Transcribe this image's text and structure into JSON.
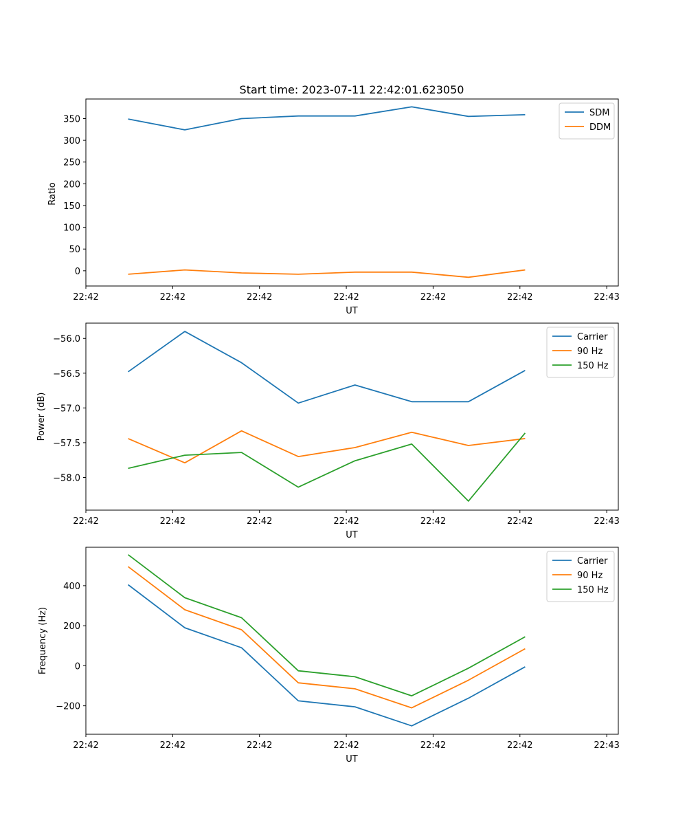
{
  "figure_title": "Start time: 2023-07-11 22:42:01.623050",
  "colors": {
    "c0": "#1f77b4",
    "c1": "#ff7f0e",
    "c2": "#2ca02c"
  },
  "chart_data": [
    {
      "type": "line",
      "xlabel": "UT",
      "ylabel": "Ratio",
      "xlim": [
        0,
        9.2
      ],
      "ylim": [
        -35,
        395
      ],
      "x_ticks": [
        0,
        1.5,
        3,
        4.5,
        6,
        7.5,
        9
      ],
      "x_tick_labels": [
        "22:42",
        "22:42",
        "22:42",
        "22:42",
        "22:42",
        "22:42",
        "22:43"
      ],
      "y_ticks": [
        0,
        50,
        100,
        150,
        200,
        250,
        300,
        350
      ],
      "y_tick_labels": [
        "0",
        "50",
        "100",
        "150",
        "200",
        "250",
        "300",
        "350"
      ],
      "x": [
        0.73,
        1.71,
        2.69,
        3.67,
        4.65,
        5.63,
        6.61,
        7.59
      ],
      "legend": "top-right",
      "series": [
        {
          "name": "SDM",
          "color": "#1f77b4",
          "values": [
            349,
            324,
            350,
            356,
            356,
            377,
            355,
            359
          ]
        },
        {
          "name": "DDM",
          "color": "#ff7f0e",
          "values": [
            -8,
            2,
            -5,
            -8,
            -3,
            -3,
            -15,
            2
          ]
        }
      ]
    },
    {
      "type": "line",
      "xlabel": "UT",
      "ylabel": "Power (dB)",
      "xlim": [
        0,
        9.2
      ],
      "ylim": [
        -58.47,
        -55.78
      ],
      "x_ticks": [
        0,
        1.5,
        3,
        4.5,
        6,
        7.5,
        9
      ],
      "x_tick_labels": [
        "22:42",
        "22:42",
        "22:42",
        "22:42",
        "22:42",
        "22:42",
        "22:43"
      ],
      "y_ticks": [
        -58.0,
        -57.5,
        -57.0,
        -56.5,
        -56.0
      ],
      "y_tick_labels": [
        "−58.0",
        "−57.5",
        "−57.0",
        "−56.5",
        "−56.0"
      ],
      "x": [
        0.73,
        1.71,
        2.69,
        3.67,
        4.65,
        5.63,
        6.61,
        7.59
      ],
      "legend": "top-right",
      "series": [
        {
          "name": "Carrier",
          "color": "#1f77b4",
          "values": [
            -56.48,
            -55.9,
            -56.35,
            -56.93,
            -56.67,
            -56.91,
            -56.91,
            -56.46
          ]
        },
        {
          "name": "90 Hz",
          "color": "#ff7f0e",
          "values": [
            -57.44,
            -57.79,
            -57.33,
            -57.7,
            -57.57,
            -57.35,
            -57.54,
            -57.44
          ]
        },
        {
          "name": "150 Hz",
          "color": "#2ca02c",
          "values": [
            -57.87,
            -57.68,
            -57.64,
            -58.14,
            -57.76,
            -57.52,
            -58.34,
            -57.36
          ]
        }
      ]
    },
    {
      "type": "line",
      "xlabel": "UT",
      "ylabel": "Frequency (Hz)",
      "xlim": [
        0,
        9.2
      ],
      "ylim": [
        -342,
        592
      ],
      "x_ticks": [
        0,
        1.5,
        3,
        4.5,
        6,
        7.5,
        9
      ],
      "x_tick_labels": [
        "22:42",
        "22:42",
        "22:42",
        "22:42",
        "22:42",
        "22:42",
        "22:43"
      ],
      "y_ticks": [
        -200,
        0,
        200,
        400
      ],
      "y_tick_labels": [
        "−200",
        "0",
        "200",
        "400"
      ],
      "x": [
        0.73,
        1.71,
        2.69,
        3.67,
        4.65,
        5.63,
        6.61,
        7.59
      ],
      "legend": "top-right",
      "series": [
        {
          "name": "Carrier",
          "color": "#1f77b4",
          "values": [
            405,
            190,
            90,
            -175,
            -205,
            -300,
            -162,
            -5
          ]
        },
        {
          "name": "90 Hz",
          "color": "#ff7f0e",
          "values": [
            495,
            280,
            180,
            -85,
            -115,
            -210,
            -72,
            85
          ]
        },
        {
          "name": "150 Hz",
          "color": "#2ca02c",
          "values": [
            555,
            340,
            240,
            -25,
            -55,
            -150,
            -12,
            145
          ]
        }
      ]
    }
  ]
}
